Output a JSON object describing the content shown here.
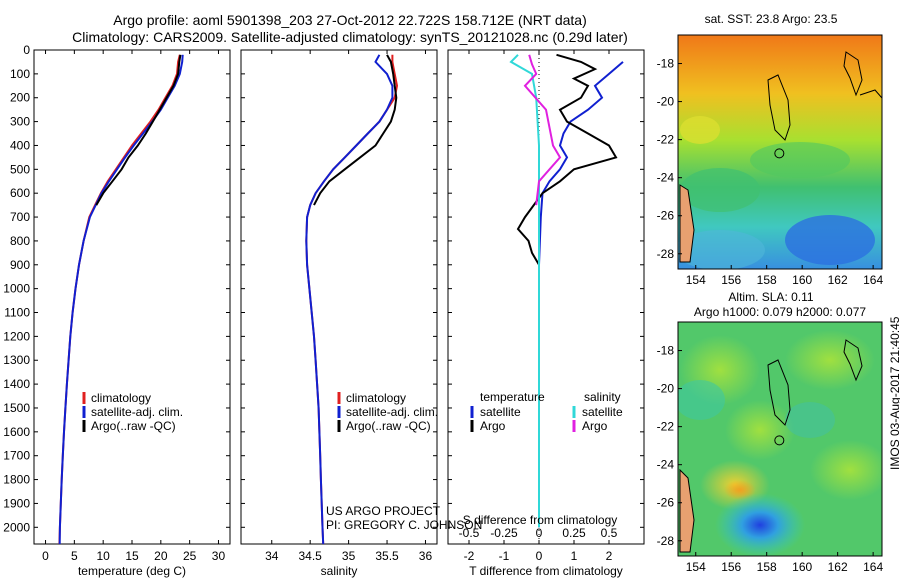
{
  "header": {
    "title_line1": "Argo profile: aoml 5901398_203 27-Oct-2012 22.722S 158.712E (NRT data)",
    "title_line2": "Climatology: CARS2009. Satellite-adjusted climatology: synTS_20121028.nc (0.29d later)"
  },
  "colors": {
    "climatology": "#e02020",
    "satellite": "#1020d0",
    "argo": "#000000",
    "sal_satellite": "#30d8d8",
    "sal_argo": "#e020e0"
  },
  "legend": {
    "climatology": "climatology",
    "satellite_adj": "satellite-adj. clim.",
    "argo": "Argo(..raw -QC)",
    "temperature_head": "temperature",
    "salinity_head": "salinity",
    "satellite": "satellite",
    "argo_short": "Argo"
  },
  "credits": {
    "project": "US ARGO PROJECT",
    "pi": "PI: GREGORY C. JOHNSON"
  },
  "timestamp": "IMOS 03-Aug-2017 21:40:45",
  "map_top": {
    "title": "sat. SST: 23.8 Argo: 23.5"
  },
  "map_bottom": {
    "title_line1": "Altim. SLA: 0.11",
    "title_line2": "Argo h1000: 0.079 h2000: 0.077"
  },
  "chart_data": [
    {
      "type": "line",
      "name": "temperature-profile",
      "xlabel": "temperature (deg C)",
      "ylabel": "",
      "xlim": [
        -2,
        32
      ],
      "ylim": [
        2070,
        0
      ],
      "xticks": [
        0,
        5,
        10,
        15,
        20,
        25,
        30
      ],
      "yticks": [
        0,
        100,
        200,
        300,
        400,
        500,
        600,
        700,
        800,
        900,
        1000,
        1100,
        1200,
        1300,
        1400,
        1500,
        1600,
        1700,
        1800,
        1900,
        2000
      ],
      "series": [
        {
          "name": "climatology",
          "color": "#e02020",
          "points": [
            [
              23.3,
              20
            ],
            [
              23.0,
              50
            ],
            [
              22.8,
              100
            ],
            [
              22.0,
              150
            ],
            [
              20.8,
              200
            ],
            [
              19.6,
              250
            ],
            [
              18.2,
              300
            ],
            [
              16.6,
              350
            ],
            [
              15.0,
              400
            ],
            [
              13.6,
              450
            ],
            [
              12.2,
              500
            ],
            [
              10.8,
              550
            ],
            [
              9.6,
              600
            ],
            [
              8.6,
              650
            ],
            [
              7.6,
              700
            ],
            [
              6.6,
              800
            ],
            [
              5.8,
              900
            ],
            [
              5.2,
              1000
            ],
            [
              4.7,
              1100
            ],
            [
              4.3,
              1200
            ],
            [
              4.0,
              1300
            ],
            [
              3.7,
              1400
            ],
            [
              3.45,
              1500
            ],
            [
              3.2,
              1600
            ],
            [
              3.0,
              1700
            ],
            [
              2.8,
              1800
            ],
            [
              2.65,
              1900
            ],
            [
              2.5,
              2000
            ],
            [
              2.4,
              2070
            ]
          ]
        },
        {
          "name": "satellite-adj. clim.",
          "color": "#1020d0",
          "points": [
            [
              23.8,
              20
            ],
            [
              23.7,
              50
            ],
            [
              23.3,
              100
            ],
            [
              22.4,
              150
            ],
            [
              21.2,
              200
            ],
            [
              20.0,
              250
            ],
            [
              18.5,
              300
            ],
            [
              16.9,
              350
            ],
            [
              15.3,
              400
            ],
            [
              13.8,
              450
            ],
            [
              12.4,
              500
            ],
            [
              11.0,
              550
            ],
            [
              9.7,
              600
            ],
            [
              8.7,
              650
            ],
            [
              7.7,
              700
            ],
            [
              6.6,
              800
            ],
            [
              5.8,
              900
            ],
            [
              5.2,
              1000
            ],
            [
              4.7,
              1100
            ],
            [
              4.3,
              1200
            ],
            [
              4.0,
              1300
            ],
            [
              3.7,
              1400
            ],
            [
              3.45,
              1500
            ],
            [
              3.2,
              1600
            ],
            [
              3.0,
              1700
            ],
            [
              2.8,
              1800
            ],
            [
              2.65,
              1900
            ],
            [
              2.5,
              2000
            ],
            [
              2.45,
              2070
            ]
          ]
        },
        {
          "name": "Argo(..raw -QC)",
          "color": "#000000",
          "points": [
            [
              23.4,
              20
            ],
            [
              23.2,
              50
            ],
            [
              23.0,
              100
            ],
            [
              22.2,
              150
            ],
            [
              21.0,
              200
            ],
            [
              19.8,
              250
            ],
            [
              18.6,
              300
            ],
            [
              17.4,
              350
            ],
            [
              16.0,
              400
            ],
            [
              14.4,
              450
            ],
            [
              13.2,
              500
            ],
            [
              11.6,
              550
            ],
            [
              10.0,
              600
            ],
            [
              8.8,
              650
            ]
          ]
        }
      ]
    },
    {
      "type": "line",
      "name": "salinity-profile",
      "xlabel": "salinity",
      "ylabel": "",
      "xlim": [
        33.6,
        36.15
      ],
      "ylim": [
        2070,
        0
      ],
      "xticks": [
        34,
        34.5,
        35,
        35.5,
        36
      ],
      "series": [
        {
          "name": "climatology",
          "color": "#e02020",
          "points": [
            [
              35.57,
              20
            ],
            [
              35.57,
              50
            ],
            [
              35.6,
              100
            ],
            [
              35.63,
              150
            ],
            [
              35.6,
              200
            ],
            [
              35.5,
              250
            ],
            [
              35.4,
              300
            ],
            [
              35.25,
              350
            ],
            [
              35.1,
              400
            ],
            [
              34.95,
              450
            ],
            [
              34.8,
              500
            ],
            [
              34.68,
              550
            ],
            [
              34.57,
              600
            ],
            [
              34.5,
              650
            ],
            [
              34.46,
              700
            ],
            [
              34.45,
              800
            ],
            [
              34.46,
              900
            ],
            [
              34.49,
              1000
            ],
            [
              34.52,
              1100
            ],
            [
              34.55,
              1200
            ],
            [
              34.57,
              1300
            ],
            [
              34.59,
              1400
            ],
            [
              34.61,
              1500
            ],
            [
              34.62,
              1600
            ],
            [
              34.63,
              1700
            ],
            [
              34.64,
              1800
            ],
            [
              34.65,
              1900
            ],
            [
              34.66,
              2000
            ],
            [
              34.67,
              2070
            ]
          ]
        },
        {
          "name": "satellite-adj. clim.",
          "color": "#1020d0",
          "points": [
            [
              35.4,
              20
            ],
            [
              35.35,
              50
            ],
            [
              35.5,
              100
            ],
            [
              35.57,
              150
            ],
            [
              35.57,
              200
            ],
            [
              35.5,
              250
            ],
            [
              35.4,
              300
            ],
            [
              35.25,
              350
            ],
            [
              35.1,
              400
            ],
            [
              34.95,
              450
            ],
            [
              34.8,
              500
            ],
            [
              34.68,
              550
            ],
            [
              34.57,
              600
            ],
            [
              34.5,
              650
            ],
            [
              34.46,
              700
            ],
            [
              34.45,
              800
            ],
            [
              34.46,
              900
            ],
            [
              34.49,
              1000
            ],
            [
              34.52,
              1100
            ],
            [
              34.55,
              1200
            ],
            [
              34.57,
              1300
            ],
            [
              34.59,
              1400
            ],
            [
              34.61,
              1500
            ],
            [
              34.62,
              1600
            ],
            [
              34.63,
              1700
            ],
            [
              34.64,
              1800
            ],
            [
              34.65,
              1900
            ],
            [
              34.66,
              2000
            ],
            [
              34.67,
              2070
            ]
          ]
        },
        {
          "name": "Argo(..raw -QC)",
          "color": "#000000",
          "points": [
            [
              35.5,
              20
            ],
            [
              35.55,
              50
            ],
            [
              35.58,
              100
            ],
            [
              35.6,
              150
            ],
            [
              35.62,
              200
            ],
            [
              35.6,
              250
            ],
            [
              35.55,
              300
            ],
            [
              35.45,
              350
            ],
            [
              35.35,
              400
            ],
            [
              35.15,
              450
            ],
            [
              34.95,
              500
            ],
            [
              34.75,
              550
            ],
            [
              34.63,
              600
            ],
            [
              34.55,
              650
            ]
          ]
        }
      ]
    },
    {
      "type": "line",
      "name": "difference-from-climatology",
      "xlabel": "T difference from climatology",
      "xlabel_top": "S difference from climatology",
      "xlim": [
        -2.6,
        3.0
      ],
      "ylim": [
        2070,
        0
      ],
      "xticks": [
        -2,
        -1,
        0,
        1,
        2
      ],
      "xticks_salinity_labels": [
        "-0.5",
        "-0.25",
        "0",
        "0.25",
        "0.5"
      ],
      "xticks_salinity": [
        -0.5,
        -0.25,
        0,
        0.25,
        0.5
      ],
      "salinity_scale": 4,
      "series": [
        {
          "name": "temperature satellite",
          "color": "#1020d0",
          "points": [
            [
              2.4,
              50
            ],
            [
              2.0,
              100
            ],
            [
              1.6,
              150
            ],
            [
              1.8,
              200
            ],
            [
              1.4,
              250
            ],
            [
              0.9,
              300
            ],
            [
              0.7,
              350
            ],
            [
              0.6,
              400
            ],
            [
              0.8,
              450
            ],
            [
              0.6,
              500
            ],
            [
              0.3,
              550
            ],
            [
              0.1,
              600
            ],
            [
              0.05,
              700
            ],
            [
              0.0,
              900
            ],
            [
              0.0,
              2000
            ]
          ]
        },
        {
          "name": "temperature Argo",
          "color": "#000000",
          "points": [
            [
              0.5,
              20
            ],
            [
              1.2,
              50
            ],
            [
              1.6,
              80
            ],
            [
              1.0,
              120
            ],
            [
              1.4,
              150
            ],
            [
              1.2,
              200
            ],
            [
              0.6,
              250
            ],
            [
              0.8,
              300
            ],
            [
              1.4,
              350
            ],
            [
              2.0,
              400
            ],
            [
              2.2,
              450
            ],
            [
              1.0,
              500
            ],
            [
              0.6,
              550
            ],
            [
              0.1,
              600
            ],
            [
              -0.4,
              700
            ],
            [
              -0.6,
              750
            ],
            [
              -0.3,
              800
            ],
            [
              -0.2,
              850
            ],
            [
              0.0,
              900
            ]
          ]
        },
        {
          "name": "salinity satellite",
          "color": "#30d8d8",
          "points": [
            [
              -0.15,
              20
            ],
            [
              -0.2,
              50
            ],
            [
              -0.05,
              100
            ],
            [
              -0.02,
              200
            ],
            [
              0.0,
              400
            ],
            [
              0.0,
              800
            ],
            [
              0.0,
              2000
            ]
          ]
        },
        {
          "name": "salinity Argo",
          "color": "#e020e0",
          "points": [
            [
              -0.07,
              20
            ],
            [
              -0.05,
              60
            ],
            [
              -0.02,
              100
            ],
            [
              -0.1,
              150
            ],
            [
              0.05,
              250
            ],
            [
              0.1,
              400
            ],
            [
              0.15,
              450
            ],
            [
              0.0,
              550
            ],
            [
              -0.02,
              650
            ]
          ]
        }
      ]
    }
  ],
  "map_axes": {
    "x_labels": [
      "154",
      "156",
      "158",
      "160",
      "162",
      "164"
    ],
    "x_values": [
      154,
      156,
      158,
      160,
      162,
      164
    ],
    "y_labels": [
      "-18",
      "-20",
      "-22",
      "-24",
      "-26",
      "-28"
    ],
    "y_values": [
      -18,
      -20,
      -22,
      -24,
      -26,
      -28
    ],
    "lon_range": [
      153,
      164.5
    ],
    "lat_range": [
      -16.5,
      -28.8
    ],
    "argo_position": [
      158.712,
      -22.722
    ]
  }
}
